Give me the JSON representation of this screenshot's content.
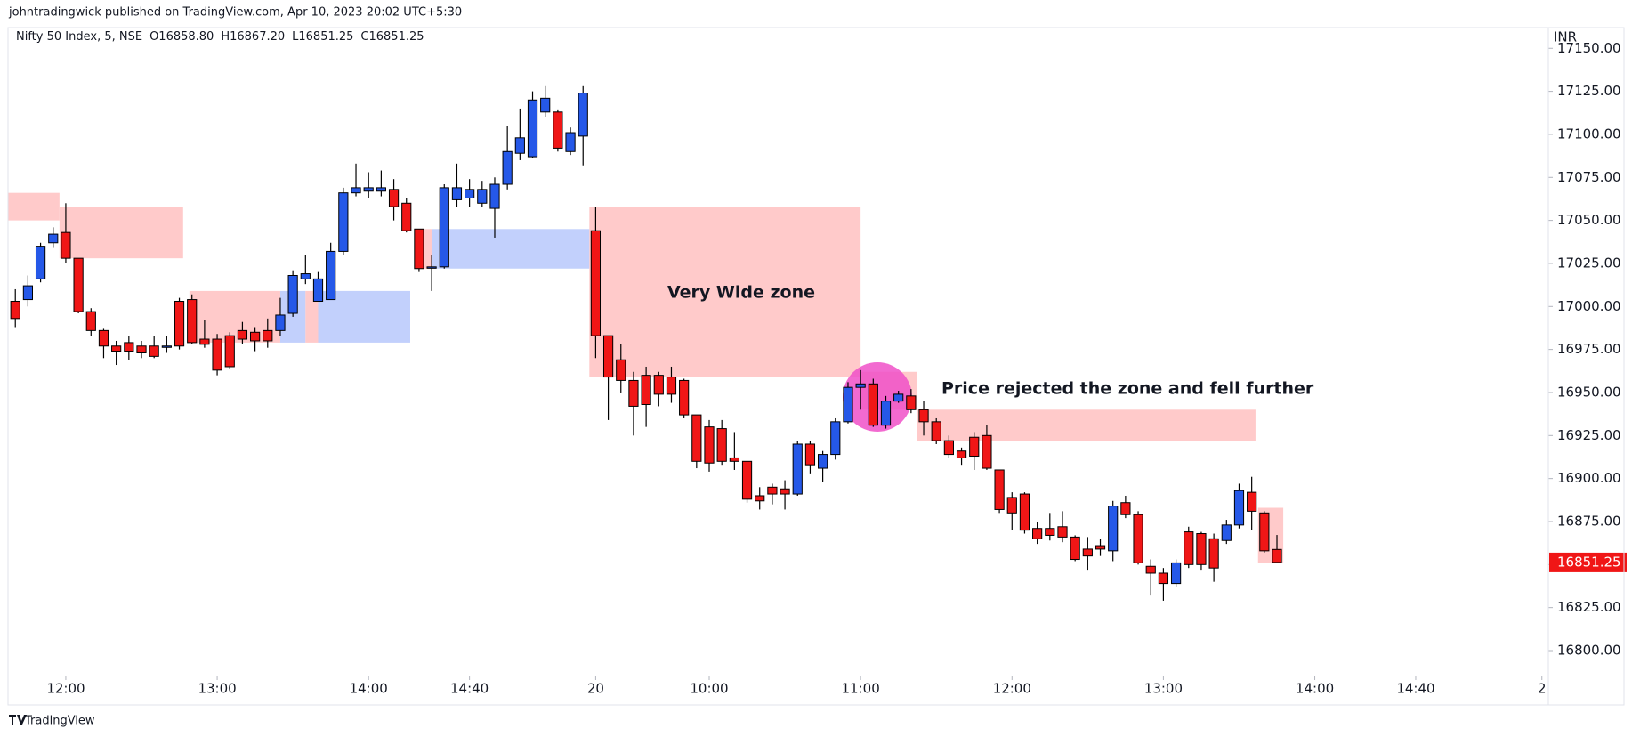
{
  "header": "johntradingwick published on TradingView.com, Apr 10, 2023 20:02 UTC+5:30",
  "footer": "TradingView",
  "chart_data": {
    "type": "candlestick",
    "legend": {
      "symbol": "Nifty 50 Index, 5, NSE",
      "open": "O16858.80",
      "high": "H16867.20",
      "low": "L16851.25",
      "close": "C16851.25"
    },
    "currency": "INR",
    "annotations": [
      "Very Wide zone",
      "Price rejected the zone and fell further"
    ],
    "up_color": "#2558e8",
    "down_color": "#f01616",
    "highlight_color": "#f050c8",
    "x": [
      0,
      1,
      2,
      3,
      4,
      5,
      6,
      7,
      8,
      9,
      10,
      11,
      12,
      13,
      14,
      15,
      16,
      17,
      18,
      19,
      20,
      21,
      22,
      23,
      24,
      25,
      26,
      27,
      28,
      29,
      30,
      31,
      32,
      33,
      34,
      35,
      36,
      37,
      38,
      39,
      40,
      41,
      42,
      43,
      44,
      45,
      46,
      47,
      48,
      49,
      50,
      51,
      52,
      53,
      54,
      55,
      56,
      57,
      58,
      59,
      60,
      61,
      62,
      63,
      64,
      65,
      66,
      67,
      68,
      69,
      70,
      71,
      72,
      73,
      74,
      75,
      76,
      77,
      78,
      79,
      80,
      81,
      82,
      83,
      84,
      85,
      86,
      87,
      88,
      89,
      90,
      91,
      92,
      93,
      94,
      95,
      96,
      97,
      98,
      99,
      100
    ],
    "open": [
      17003,
      17004,
      17016,
      17037,
      17043,
      17028,
      16997,
      16986,
      16977,
      16979,
      16977,
      16977,
      16977,
      17003,
      17004,
      16981,
      16981,
      16983,
      16986,
      16985,
      16986,
      16986,
      16996,
      17016,
      17003,
      17004,
      17032,
      17066,
      17067,
      17067,
      17068,
      17060,
      17045,
      17023,
      17023,
      17062,
      17063,
      17060,
      17057,
      17071,
      17089,
      17087,
      17113,
      17113,
      17090,
      17099,
      17044,
      16983,
      16969,
      16957,
      16960,
      16960,
      16959,
      16957,
      16937,
      16930,
      16929,
      16912,
      16910,
      16890,
      16895,
      16894,
      16891,
      16920,
      16906,
      16914,
      16933,
      16953,
      16955,
      16931,
      16945,
      16948,
      16940,
      16933,
      16922,
      16916,
      16924,
      16925,
      16905,
      16889,
      16891,
      16871,
      16871,
      16872,
      16866,
      16859,
      16861,
      16858,
      16886,
      16879,
      16849,
      16845,
      16839,
      16869,
      16868,
      16865,
      16864,
      16873,
      16892,
      16880,
      16858.8
    ],
    "high": [
      17010,
      17018,
      17037,
      17046,
      17060,
      17028,
      16999,
      16987,
      16980,
      16983,
      16980,
      16983,
      16983,
      17005,
      17007,
      16992,
      16984,
      16985,
      16991,
      16988,
      16993,
      17005,
      17021,
      17030,
      17020,
      17037,
      17069,
      17083,
      17078,
      17079,
      17074,
      17063,
      17045,
      17030,
      17071,
      17083,
      17074,
      17073,
      17075,
      17105,
      17115,
      17125,
      17128,
      17114,
      17104,
      17128,
      17058,
      16983,
      16978,
      16962,
      16965,
      16962,
      16965,
      16958,
      16937,
      16934,
      16934,
      16927,
      16910,
      16895,
      16897,
      16899,
      16922,
      16922,
      16916,
      16935,
      16956,
      16963,
      16958,
      16948,
      16951,
      16952,
      16945,
      16935,
      16925,
      16918,
      16927,
      16931,
      16905,
      16892,
      16892,
      16875,
      16880,
      16881,
      16867,
      16866,
      16865,
      16887,
      16890,
      16881,
      16853,
      16848,
      16853,
      16872,
      16869,
      16868,
      16876,
      16897,
      16901,
      16881,
      16867.2
    ],
    "low": [
      16988,
      17000,
      17014,
      17034,
      17025,
      16996,
      16983,
      16970,
      16966,
      16969,
      16970,
      16970,
      16973,
      16975,
      16978,
      16976,
      16960,
      16964,
      16978,
      16974,
      16976,
      16983,
      16994,
      17013,
      17003,
      17004,
      17030,
      17064,
      17063,
      17064,
      17050,
      17043,
      17020,
      17009,
      17022,
      17058,
      17058,
      17058,
      17040,
      17068,
      17085,
      17086,
      17110,
      17090,
      17088,
      17082,
      16970,
      16934,
      16950,
      16925,
      16930,
      16942,
      16944,
      16935,
      16906,
      16904,
      16908,
      16905,
      16886,
      16882,
      16885,
      16882,
      16890,
      16903,
      16898,
      16911,
      16932,
      16940,
      16930,
      16929,
      16944,
      16938,
      16925,
      16920,
      16912,
      16908,
      16905,
      16905,
      16880,
      16870,
      16868,
      16862,
      16864,
      16863,
      16852,
      16847,
      16855,
      16852,
      16877,
      16850,
      16832,
      16829,
      16837,
      16848,
      16847,
      16840,
      16862,
      16871,
      16870,
      16857,
      16851.25
    ],
    "close": [
      16993,
      17012,
      17035,
      17042,
      17028,
      16997,
      16986,
      16977,
      16974,
      16974,
      16973,
      16971,
      16977,
      16977,
      16979,
      16978,
      16963,
      16965,
      16981,
      16980,
      16980,
      16995,
      17018,
      17019,
      17016,
      17032,
      17066,
      17069,
      17069,
      17069,
      17058,
      17044,
      17022,
      17023,
      17069,
      17069,
      17068,
      17068,
      17071,
      17090,
      17098,
      17120,
      17121,
      17092,
      17101,
      17124,
      16983,
      16959,
      16957,
      16942,
      16943,
      16949,
      16949,
      16937,
      16910,
      16909,
      16910,
      16910,
      16888,
      16887,
      16891,
      16891,
      16920,
      16908,
      16914,
      16933,
      16953,
      16955,
      16931,
      16945,
      16949,
      16940,
      16933,
      16922,
      16914,
      16912,
      16913,
      16906,
      16882,
      16880,
      16870,
      16865,
      16867,
      16866,
      16853,
      16855,
      16859,
      16884,
      16879,
      16851,
      16845,
      16839,
      16851,
      16850,
      16850,
      16848,
      16873,
      16893,
      16881,
      16858,
      16851.25
    ],
    "zones": [
      {
        "color": "#ffcaca",
        "start": -0.6,
        "end": 3.5,
        "top": 17066,
        "bottom": 17050
      },
      {
        "color": "#ffcaca",
        "start": 3.5,
        "end": 13.3,
        "top": 17058,
        "bottom": 17028
      },
      {
        "color": "#ffcaca",
        "start": 13.8,
        "end": 21,
        "top": 17009,
        "bottom": 16979
      },
      {
        "color": "#c2d0fc",
        "start": 21,
        "end": 23,
        "top": 17009,
        "bottom": 16979
      },
      {
        "color": "#ffcaca",
        "start": 23,
        "end": 24,
        "top": 17009,
        "bottom": 16979
      },
      {
        "color": "#c2d0fc",
        "start": 24,
        "end": 31.3,
        "top": 17009,
        "bottom": 16979
      },
      {
        "color": "#ffcaca",
        "start": 32,
        "end": 33,
        "top": 17045,
        "bottom": 17022
      },
      {
        "color": "#c2d0fc",
        "start": 33,
        "end": 45.5,
        "top": 17045,
        "bottom": 17022
      },
      {
        "color": "#ffcaca",
        "start": 45.5,
        "end": 67,
        "top": 17058,
        "bottom": 16959
      },
      {
        "color": "#ffcaca",
        "start": 67,
        "end": 71.5,
        "top": 16962,
        "bottom": 16940
      },
      {
        "color": "#ffcaca",
        "start": 71.5,
        "end": 98.3,
        "top": 16940,
        "bottom": 16922
      },
      {
        "color": "#ffcaca",
        "start": 98.5,
        "end": 100.5,
        "top": 16883,
        "bottom": 16851
      }
    ],
    "last_price": {
      "value": 16851.25,
      "label": "16851.25"
    },
    "xlim": [
      -0.58,
      121.3
    ],
    "ylim": [
      16785,
      17161
    ],
    "xticks": [
      {
        "value": 4,
        "label": "12:00"
      },
      {
        "value": 16,
        "label": "13:00"
      },
      {
        "value": 28,
        "label": "14:00"
      },
      {
        "value": 36,
        "label": "14:40"
      },
      {
        "value": 46,
        "label": "20"
      },
      {
        "value": 55,
        "label": "10:00"
      },
      {
        "value": 67,
        "label": "11:00"
      },
      {
        "value": 79,
        "label": "12:00"
      },
      {
        "value": 91,
        "label": "13:00"
      },
      {
        "value": 103,
        "label": "14:00"
      },
      {
        "value": 111,
        "label": "14:40"
      },
      {
        "value": 121,
        "label": "2"
      }
    ],
    "yticks": [
      {
        "value": 16800,
        "label": "16800.00"
      },
      {
        "value": 16825,
        "label": "16825.00"
      },
      {
        "value": 16850,
        "label": "16850.00"
      },
      {
        "value": 16875,
        "label": "16875.00"
      },
      {
        "value": 16900,
        "label": "16900.00"
      },
      {
        "value": 16925,
        "label": "16925.00"
      },
      {
        "value": 16950,
        "label": "16950.00"
      },
      {
        "value": 16975,
        "label": "16975.00"
      },
      {
        "value": 17000,
        "label": "17000.00"
      },
      {
        "value": 17025,
        "label": "17025.00"
      },
      {
        "value": 17050,
        "label": "17050.00"
      },
      {
        "value": 17075,
        "label": "17075.00"
      },
      {
        "value": 17100,
        "label": "17100.00"
      },
      {
        "value": 17125,
        "label": "17125.00"
      },
      {
        "value": 17150,
        "label": "17150.00"
      }
    ]
  }
}
